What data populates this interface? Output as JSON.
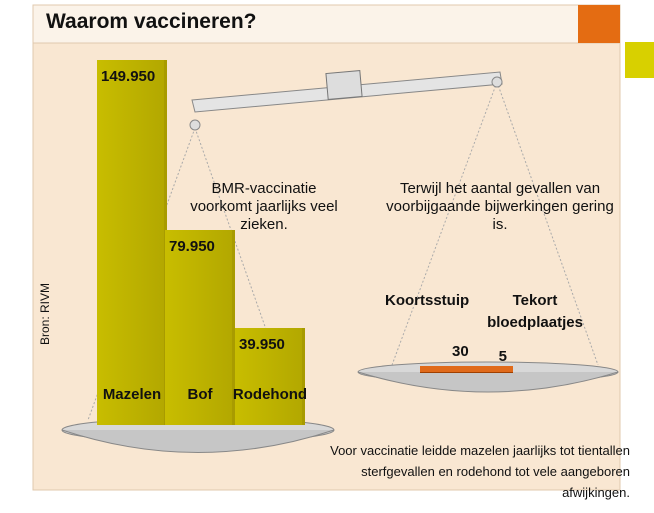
{
  "chart_data": [
    {
      "type": "bar",
      "title": "Waarom vaccineren?",
      "source": "Bron: RIVM",
      "annotation": "BMR-vaccinatie voorkomt jaarlijks veel zieken.",
      "categories": [
        "Mazelen",
        "Bof",
        "Rodehond"
      ],
      "values": [
        149950,
        79950,
        39950
      ],
      "value_labels": [
        "149.950",
        "79.950",
        "39.950"
      ],
      "color": "#c8bd00"
    },
    {
      "type": "hbar",
      "annotation": "Terwijl het aantal gevallen van voorbijgaande bijwerkingen gering is.",
      "categories": [
        "Koortsstuip",
        "Tekort bloedplaatjes"
      ],
      "values": [
        30,
        5
      ],
      "color": "#e06a1a",
      "footnote": "Voor vaccinatie leidde mazelen jaarlijks tot tientallen sterfgevallen en rodehond tot vele aangeboren afwijkingen."
    }
  ]
}
